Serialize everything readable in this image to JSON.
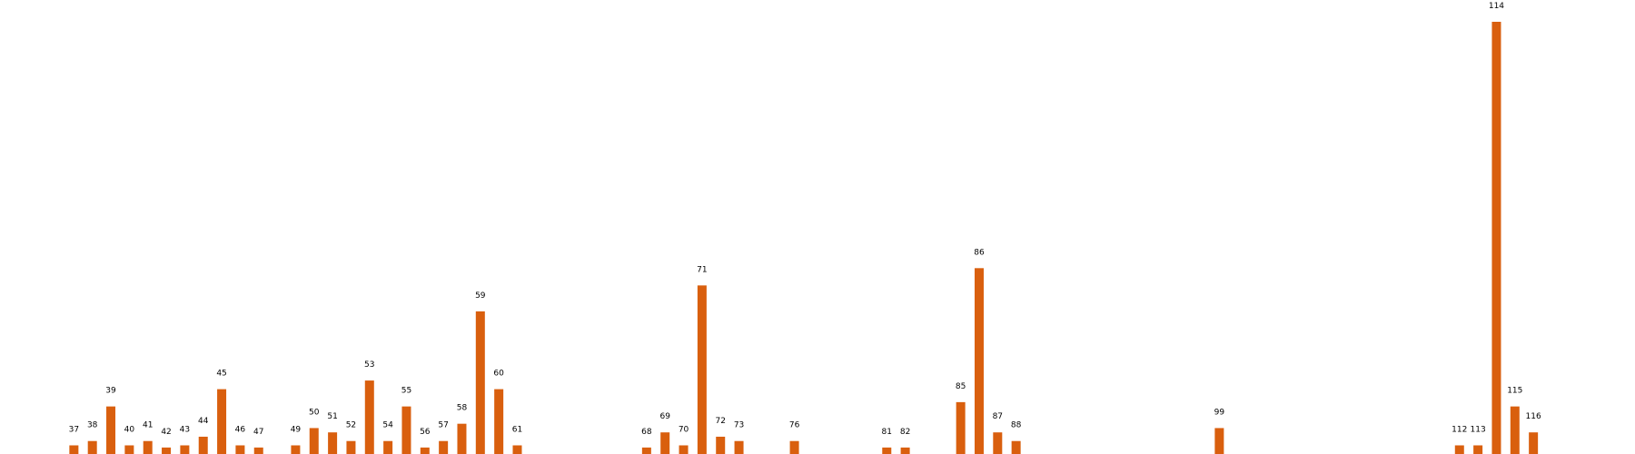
{
  "chart_data": {
    "type": "bar",
    "x": [
      37,
      38,
      39,
      40,
      41,
      42,
      43,
      44,
      45,
      46,
      47,
      49,
      50,
      51,
      52,
      53,
      54,
      55,
      56,
      57,
      58,
      59,
      60,
      61,
      68,
      69,
      70,
      71,
      72,
      73,
      76,
      81,
      82,
      85,
      86,
      87,
      88,
      99,
      112,
      113,
      114,
      115,
      116
    ],
    "categories": [
      "37",
      "38",
      "39",
      "40",
      "41",
      "42",
      "43",
      "44",
      "45",
      "46",
      "47",
      "49",
      "50",
      "51",
      "52",
      "53",
      "54",
      "55",
      "56",
      "57",
      "58",
      "59",
      "60",
      "61",
      "68",
      "69",
      "70",
      "71",
      "72",
      "73",
      "76",
      "81",
      "82",
      "85",
      "86",
      "87",
      "88",
      "99",
      "112",
      "113",
      "114",
      "115",
      "116"
    ],
    "values": [
      2,
      3,
      11,
      2,
      3,
      1.5,
      2,
      4,
      15,
      2,
      1.5,
      2,
      6,
      5,
      3,
      17,
      3,
      11,
      1.5,
      3,
      7,
      33,
      15,
      2,
      1.5,
      5,
      2,
      39,
      4,
      3,
      3,
      1.5,
      1.5,
      12,
      43,
      5,
      3,
      6,
      2,
      2,
      100,
      11,
      5
    ],
    "xlim": [
      33,
      121.5
    ],
    "ylim": [
      0,
      100
    ],
    "title": "",
    "xlabel": "",
    "ylabel": "",
    "grid": false,
    "legend": "none",
    "bar_color": "#d95f0e"
  }
}
